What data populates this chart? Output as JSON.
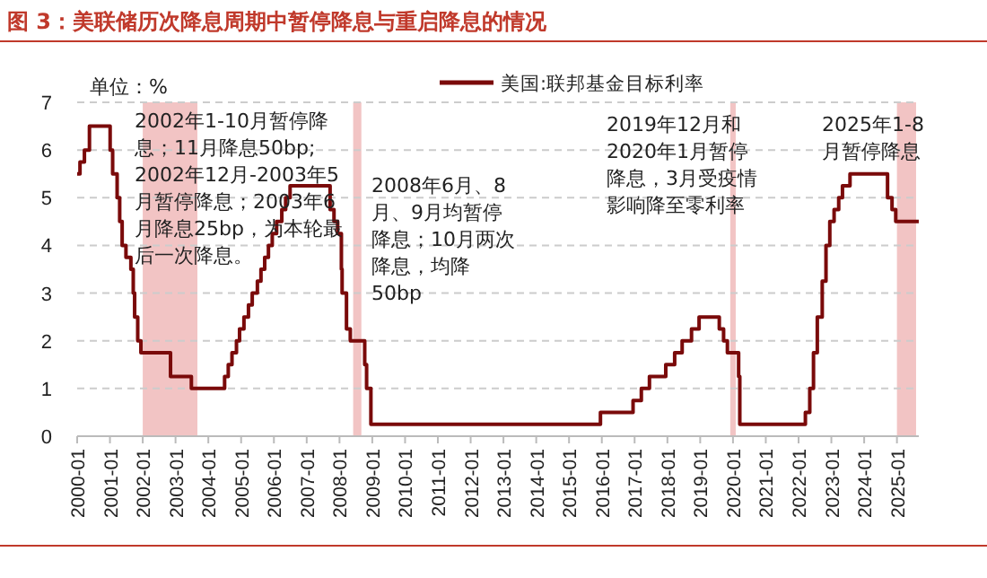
{
  "chart_data": {
    "type": "step",
    "title": "图 3：美联储历次降息周期中暂停降息与重启降息的情况",
    "ylabel": "单位：%",
    "series": [
      {
        "name": "美国:联邦基金目标利率",
        "color": "#7a0a0a",
        "x": [
          "2000-01-01",
          "2000-02-02",
          "2000-03-21",
          "2000-05-16",
          "2001-01-03",
          "2001-01-31",
          "2001-03-20",
          "2001-04-18",
          "2001-05-15",
          "2001-06-27",
          "2001-08-21",
          "2001-09-17",
          "2001-10-02",
          "2001-11-06",
          "2001-12-11",
          "2002-11-06",
          "2003-06-25",
          "2004-06-30",
          "2004-08-10",
          "2004-09-21",
          "2004-11-10",
          "2004-12-14",
          "2005-02-02",
          "2005-03-22",
          "2005-05-03",
          "2005-06-30",
          "2005-08-09",
          "2005-09-20",
          "2005-11-01",
          "2005-12-13",
          "2006-01-31",
          "2006-03-28",
          "2006-05-10",
          "2006-06-29",
          "2007-09-18",
          "2007-10-31",
          "2007-12-11",
          "2008-01-22",
          "2008-01-30",
          "2008-03-18",
          "2008-04-30",
          "2008-10-08",
          "2008-10-29",
          "2008-12-16",
          "2015-12-16",
          "2016-12-14",
          "2017-03-15",
          "2017-06-14",
          "2017-12-13",
          "2018-03-21",
          "2018-06-13",
          "2018-09-26",
          "2018-12-19",
          "2019-07-31",
          "2019-09-18",
          "2019-10-30",
          "2020-03-03",
          "2020-03-16",
          "2022-03-16",
          "2022-05-04",
          "2022-06-15",
          "2022-07-27",
          "2022-09-21",
          "2022-11-02",
          "2022-12-14",
          "2023-02-01",
          "2023-03-22",
          "2023-05-03",
          "2023-07-26",
          "2024-09-18",
          "2024-11-07",
          "2024-12-18",
          "2025-08-31"
        ],
        "values": [
          5.5,
          5.75,
          6.0,
          6.5,
          6.0,
          5.5,
          5.0,
          4.5,
          4.0,
          3.75,
          3.5,
          3.0,
          2.5,
          2.0,
          1.75,
          1.25,
          1.0,
          1.25,
          1.5,
          1.75,
          2.0,
          2.25,
          2.5,
          2.75,
          3.0,
          3.25,
          3.5,
          3.75,
          4.0,
          4.25,
          4.5,
          4.75,
          5.0,
          5.25,
          4.75,
          4.5,
          4.25,
          3.5,
          3.0,
          2.25,
          2.0,
          1.5,
          1.0,
          0.25,
          0.5,
          0.75,
          1.0,
          1.25,
          1.5,
          1.75,
          2.0,
          2.25,
          2.5,
          2.25,
          2.0,
          1.75,
          1.25,
          0.25,
          0.5,
          1.0,
          1.75,
          2.5,
          3.25,
          4.0,
          4.5,
          4.75,
          5.0,
          5.25,
          5.5,
          5.0,
          4.75,
          4.5,
          4.5
        ]
      }
    ],
    "xlim": [
      "2000-01",
      "2025-09"
    ],
    "xticks": [
      "2000-01",
      "2001-01",
      "2002-01",
      "2003-01",
      "2004-01",
      "2005-01",
      "2006-01",
      "2007-01",
      "2008-01",
      "2009-01",
      "2010-01",
      "2011-01",
      "2012-01",
      "2013-01",
      "2014-01",
      "2015-01",
      "2016-01",
      "2017-01",
      "2018-01",
      "2019-01",
      "2020-01",
      "2021-01",
      "2022-01",
      "2023-01",
      "2024-01",
      "2025-01"
    ],
    "ylim": [
      0,
      7
    ],
    "yticks": [
      0,
      1,
      2,
      3,
      4,
      5,
      6,
      7
    ],
    "grid": "y",
    "legend": "top right",
    "line_style": "solid",
    "bands": [
      {
        "axis": "x",
        "from": "2002-01",
        "to": "2003-09",
        "color": "#f2c4c4"
      },
      {
        "axis": "x",
        "from": "2008-06",
        "to": "2008-09",
        "color": "#f2c4c4"
      },
      {
        "axis": "x",
        "from": "2019-12",
        "to": "2020-02",
        "color": "#f2c4c4"
      },
      {
        "axis": "x",
        "from": "2025-01",
        "to": "2025-08",
        "color": "#f2c4c4"
      }
    ],
    "annotations": [
      "2002年1-10月暂停降息；11月降息50bp; 2002年12月-2003年5月暂停降息；2003年6月降息25bp，为本轮最后一次降息。",
      "2008年6月、8月、9月均暂停降息；10月两次降息，均降50bp",
      "2019年12月和2020年1月暂停降息，3月受疫情影响降至零利率",
      "2025年1-8月暂停降息"
    ]
  }
}
